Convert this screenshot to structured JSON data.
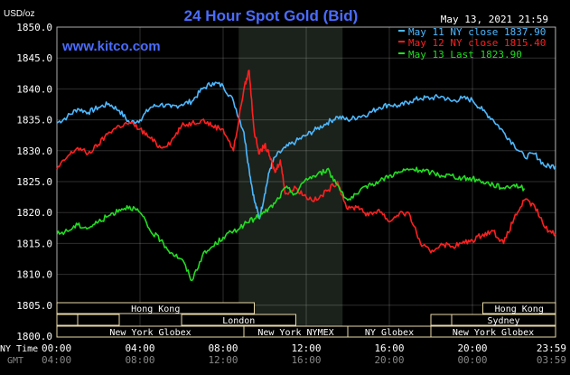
{
  "chart_data": {
    "type": "line",
    "title": "24 Hour Spot Gold (Bid)",
    "ylabel": "USD/oz",
    "date": "May 13, 2021 21:59",
    "source": "www.kitco.com",
    "ylim": [
      1800,
      1850
    ],
    "yticks": [
      "1800.0",
      "1805.0",
      "1810.0",
      "1815.0",
      "1820.0",
      "1825.0",
      "1830.0",
      "1835.0",
      "1840.0",
      "1845.0",
      "1850.0"
    ],
    "x_label_ny": "NY Time",
    "x_label_gmt": "GMT",
    "x_ticks_ny": [
      "00:00",
      "04:00",
      "08:00",
      "12:00",
      "16:00",
      "20:00",
      "23:59"
    ],
    "x_ticks_gmt": [
      "04:00",
      "08:00",
      "12:00",
      "16:00",
      "20:00",
      "00:00",
      "03:59"
    ],
    "x_tick_hours": [
      0,
      4,
      8,
      12,
      16,
      20,
      23.983
    ],
    "session_band": [
      8.75,
      13.75
    ],
    "legend": [
      {
        "label": "May 11 NY close 1837.90",
        "color": "#4db8ff"
      },
      {
        "label": "May 12 NY close 1815.40",
        "color": "#ff2020"
      },
      {
        "label": "May 13 Last 1823.90",
        "color": "#22dd22"
      }
    ],
    "series": [
      {
        "name": "May 11",
        "color": "#4db8ff",
        "x": [
          0,
          0.5,
          1,
          1.5,
          2,
          2.5,
          3,
          3.5,
          4,
          4.5,
          5,
          5.5,
          6,
          6.5,
          7,
          7.5,
          8,
          8.5,
          9,
          9.25,
          9.5,
          9.75,
          10,
          10.25,
          10.5,
          11,
          11.5,
          12,
          12.5,
          13,
          13.5,
          14,
          14.5,
          15,
          15.5,
          16,
          16.5,
          17,
          17.5,
          18,
          18.5,
          19,
          19.5,
          20,
          20.5,
          21,
          21.5,
          22,
          22.5,
          23,
          23.5,
          24
        ],
        "values": [
          1834.5,
          1835.5,
          1836.8,
          1836.2,
          1837.0,
          1837.6,
          1836.5,
          1834.5,
          1835.0,
          1837.0,
          1837.5,
          1837.0,
          1837.5,
          1838.0,
          1840.0,
          1841.0,
          1840.5,
          1838.0,
          1833.0,
          1827.0,
          1822.0,
          1819.0,
          1823.0,
          1827.0,
          1829.0,
          1830.5,
          1831.5,
          1832.5,
          1833.5,
          1834.5,
          1835.5,
          1835.0,
          1835.5,
          1836.0,
          1837.0,
          1837.5,
          1837.2,
          1838.0,
          1838.5,
          1838.5,
          1838.8,
          1838.0,
          1838.5,
          1838.2,
          1836.5,
          1835.0,
          1833.0,
          1831.0,
          1829.0,
          1829.5,
          1827.5,
          1827.5
        ]
      },
      {
        "name": "May 12",
        "color": "#ff2020",
        "x": [
          0,
          0.5,
          1,
          1.5,
          2,
          2.5,
          3,
          3.5,
          4,
          4.5,
          5,
          5.5,
          6,
          6.5,
          7,
          7.5,
          8,
          8.5,
          9,
          9.25,
          9.5,
          9.75,
          10,
          10.25,
          10.5,
          10.75,
          11,
          11.5,
          12,
          12.5,
          13,
          13.5,
          14,
          14.5,
          15,
          15.5,
          16,
          16.5,
          17,
          17.5,
          18,
          18.5,
          19,
          19.5,
          20,
          20.5,
          21,
          21.5,
          22,
          22.5,
          23,
          23.5,
          24
        ],
        "values": [
          1827.0,
          1829.0,
          1830.5,
          1829.5,
          1831.0,
          1833.0,
          1834.0,
          1834.5,
          1833.5,
          1832.0,
          1830.5,
          1831.5,
          1834.0,
          1834.5,
          1835.0,
          1834.0,
          1833.5,
          1830.0,
          1840.0,
          1843.0,
          1833.0,
          1829.5,
          1831.0,
          1829.0,
          1826.5,
          1828.5,
          1823.0,
          1824.0,
          1822.5,
          1822.0,
          1823.5,
          1825.0,
          1820.5,
          1821.0,
          1819.5,
          1820.5,
          1818.5,
          1820.0,
          1819.5,
          1815.0,
          1813.5,
          1815.0,
          1814.5,
          1815.0,
          1815.5,
          1816.5,
          1817.0,
          1815.0,
          1819.0,
          1822.0,
          1821.0,
          1817.5,
          1816.5
        ]
      },
      {
        "name": "May 13",
        "color": "#22dd22",
        "x": [
          0,
          0.5,
          1,
          1.5,
          2,
          2.5,
          3,
          3.5,
          4,
          4.5,
          5,
          5.5,
          6,
          6.5,
          7,
          7.5,
          8,
          8.5,
          9,
          9.5,
          10,
          10.5,
          11,
          11.5,
          12,
          12.5,
          13,
          13.5,
          14,
          14.5,
          15,
          15.5,
          16,
          16.5,
          17,
          17.5,
          18,
          18.5,
          19,
          19.5,
          20,
          20.5,
          21,
          21.5,
          22,
          22.5
        ],
        "values": [
          1816.5,
          1817.0,
          1818.0,
          1817.5,
          1818.5,
          1819.5,
          1820.5,
          1821.0,
          1820.0,
          1817.0,
          1815.5,
          1813.5,
          1812.5,
          1809.0,
          1813.0,
          1814.5,
          1816.0,
          1817.0,
          1818.0,
          1819.0,
          1820.0,
          1821.5,
          1824.0,
          1823.0,
          1825.5,
          1826.0,
          1827.0,
          1824.5,
          1822.0,
          1823.0,
          1824.5,
          1825.0,
          1826.0,
          1826.5,
          1827.0,
          1826.8,
          1826.5,
          1826.0,
          1826.0,
          1825.5,
          1825.5,
          1825.0,
          1824.5,
          1824.0,
          1824.5,
          1823.9
        ]
      }
    ],
    "markets": [
      {
        "label": "Hong Kong",
        "start": 0,
        "end": 9.5,
        "row": 0
      },
      {
        "label": "Hong Kong",
        "start": 20.5,
        "end": 24,
        "row": 0
      },
      {
        "label": "London",
        "start": 6,
        "end": 11.5,
        "row": 1
      },
      {
        "label": "Sydney",
        "start": 19,
        "end": 24,
        "row": 1
      },
      {
        "label": "",
        "start": 0,
        "end": 1,
        "row": 1
      },
      {
        "label": "",
        "start": 1,
        "end": 3,
        "row": 1
      },
      {
        "label": "",
        "start": 18,
        "end": 19,
        "row": 1
      },
      {
        "label": "New York Globex",
        "start": 0,
        "end": 9,
        "row": 2
      },
      {
        "label": "New York NYMEX",
        "start": 9,
        "end": 14,
        "row": 2
      },
      {
        "label": "NY Globex",
        "start": 14,
        "end": 18,
        "row": 2
      },
      {
        "label": "New York Globex",
        "start": 18,
        "end": 24,
        "row": 2
      }
    ]
  }
}
